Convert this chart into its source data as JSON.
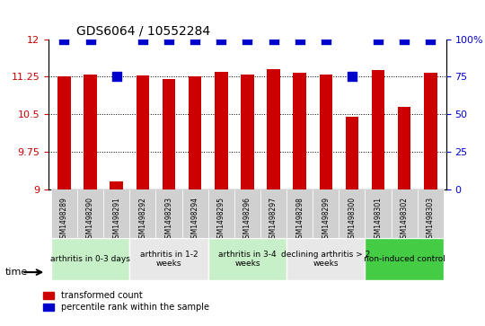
{
  "title": "GDS6064 / 10552284",
  "samples": [
    "GSM1498289",
    "GSM1498290",
    "GSM1498291",
    "GSM1498292",
    "GSM1498293",
    "GSM1498294",
    "GSM1498295",
    "GSM1498296",
    "GSM1498297",
    "GSM1498298",
    "GSM1498299",
    "GSM1498300",
    "GSM1498301",
    "GSM1498302",
    "GSM1498303"
  ],
  "red_values": [
    11.25,
    11.3,
    9.15,
    11.28,
    11.2,
    11.25,
    11.35,
    11.3,
    11.4,
    11.33,
    11.3,
    10.45,
    11.38,
    10.65,
    11.33
  ],
  "blue_values": [
    100,
    100,
    75,
    100,
    100,
    100,
    100,
    100,
    100,
    100,
    100,
    75,
    100,
    100,
    100
  ],
  "ylim_left": [
    9,
    12
  ],
  "ylim_right": [
    0,
    100
  ],
  "yticks_left": [
    9,
    9.75,
    10.5,
    11.25,
    12
  ],
  "yticks_right": [
    0,
    25,
    50,
    75,
    100
  ],
  "groups": [
    {
      "label": "arthritis in 0-3 days",
      "start": 0,
      "end": 3,
      "color": "#c8f0c8"
    },
    {
      "label": "arthritis in 1-2\nweeks",
      "start": 3,
      "end": 6,
      "color": "#e8e8e8"
    },
    {
      "label": "arthritis in 3-4\nweeks",
      "start": 6,
      "end": 9,
      "color": "#c8f0c8"
    },
    {
      "label": "declining arthritis > 2\nweeks",
      "start": 9,
      "end": 12,
      "color": "#e8e8e8"
    },
    {
      "label": "non-induced control",
      "start": 12,
      "end": 15,
      "color": "#44cc44"
    }
  ],
  "legend_red_label": "transformed count",
  "legend_blue_label": "percentile rank within the sample",
  "time_label": "time",
  "red_color": "#cc0000",
  "blue_color": "#0000cc",
  "bar_width": 0.5,
  "blue_dot_size": 60,
  "ytick_label_color_left": "#cc0000",
  "ytick_label_color_right": "#0000cc"
}
